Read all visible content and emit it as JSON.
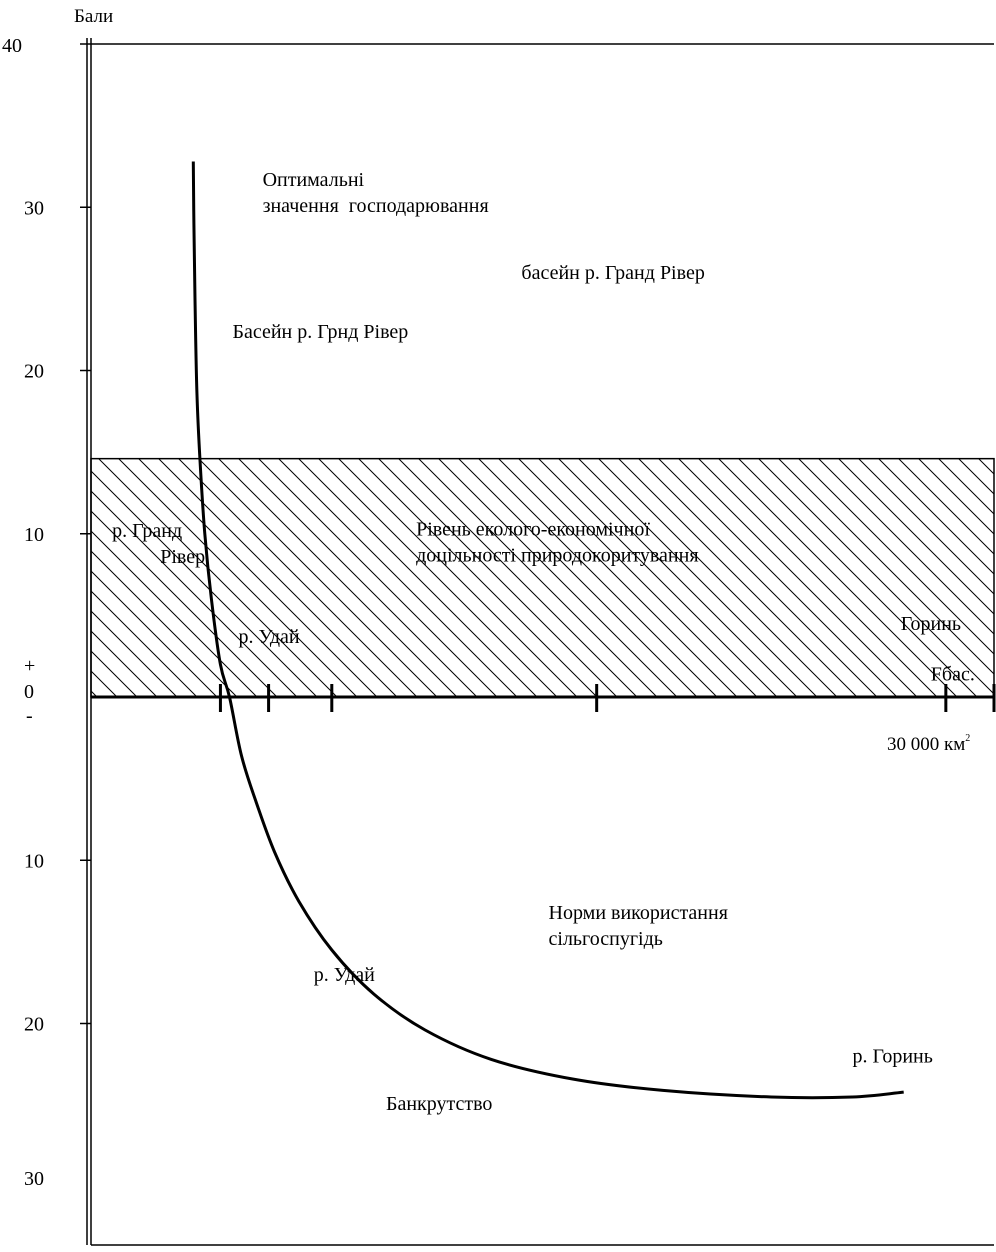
{
  "chart_data": {
    "type": "line",
    "ylabel": "Бали",
    "y_ticks": [
      {
        "value": 40,
        "label": "40"
      },
      {
        "value": 30,
        "label": "30"
      },
      {
        "value": 20,
        "label": "20"
      },
      {
        "value": 10,
        "label": "10"
      },
      {
        "value": -10,
        "label": "10"
      },
      {
        "value": -20,
        "label": "20"
      },
      {
        "value": -30,
        "label": "30"
      }
    ],
    "zero_label": "0",
    "plus_label": "+",
    "minus_label": "-",
    "ylim": [
      -30,
      40
    ],
    "xlim": [
      0,
      30000
    ],
    "x_unit": "30 000 км",
    "x_unit_sup": "2",
    "x_tick_values": [
      4300,
      5900,
      8000,
      16800,
      28400,
      30000
    ],
    "band": {
      "from": 0,
      "to": 14.6,
      "hatched": true
    },
    "series": [
      {
        "x": [
          3400,
          3420,
          3460,
          3520,
          3620,
          3780,
          4000,
          4300,
          4600,
          5000,
          5500,
          6100,
          6900,
          8000,
          9400,
          11100,
          13300,
          16000,
          19000,
          22600,
          25300,
          27000
        ],
        "y": [
          32.8,
          29.0,
          24.0,
          18.5,
          14.5,
          10.0,
          6.0,
          2.0,
          0.0,
          -3.6,
          -6.5,
          -9.5,
          -12.5,
          -15.5,
          -18.2,
          -20.4,
          -22.2,
          -23.4,
          -24.1,
          -24.5,
          -24.5,
          -24.2
        ]
      }
    ],
    "annotations": [
      {
        "text": "Оптимальні",
        "x": 5700,
        "y": 31.3
      },
      {
        "text": "значення  господарювання",
        "x": 5700,
        "y": 29.7
      },
      {
        "text": "басейн р. Гранд Рівер",
        "x": 14300,
        "y": 25.6
      },
      {
        "text": "Басейн р. Грнд Рівер",
        "x": 4700,
        "y": 22.0
      },
      {
        "text": "р. Гранд",
        "x": 700,
        "y": 9.8
      },
      {
        "text": "Рівер",
        "x": 2300,
        "y": 8.2
      },
      {
        "text": "Рівень еколого-економічної",
        "x": 10800,
        "y": 9.9
      },
      {
        "text": "доцільності природокоритування",
        "x": 10800,
        "y": 8.3
      },
      {
        "text": "р. Удай",
        "x": 4900,
        "y": 3.3
      },
      {
        "text": "Горинь",
        "x": 26900,
        "y": 4.1
      },
      {
        "text": "Fбас.",
        "x": 27900,
        "y": 1.0
      },
      {
        "text": "Норми використання",
        "x": 15200,
        "y": -13.6
      },
      {
        "text": "сільгоспугідь",
        "x": 15200,
        "y": -15.2
      },
      {
        "text": "р. Удай",
        "x": 7400,
        "y": -17.4
      },
      {
        "text": "р. Горинь",
        "x": 25300,
        "y": -22.4
      },
      {
        "text": "Банкрутство",
        "x": 9800,
        "y": -25.3
      }
    ]
  }
}
